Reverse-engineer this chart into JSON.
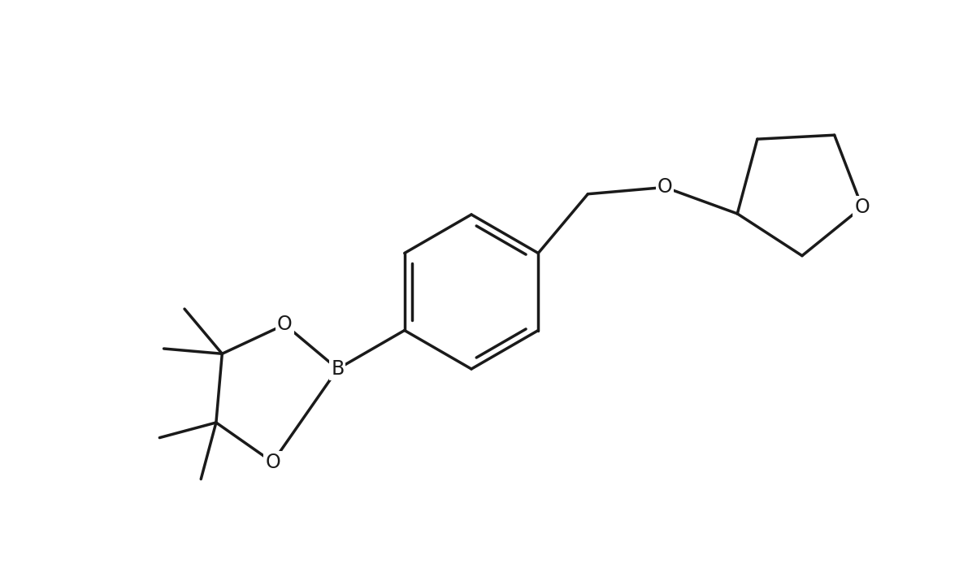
{
  "background_color": "#ffffff",
  "line_color": "#1a1a1a",
  "line_width": 2.5,
  "font_size": 17,
  "figsize": [
    11.8,
    6.94
  ],
  "dpi": 100,
  "xlim": [
    0.0,
    11.8
  ],
  "ylim": [
    0.0,
    6.94
  ]
}
